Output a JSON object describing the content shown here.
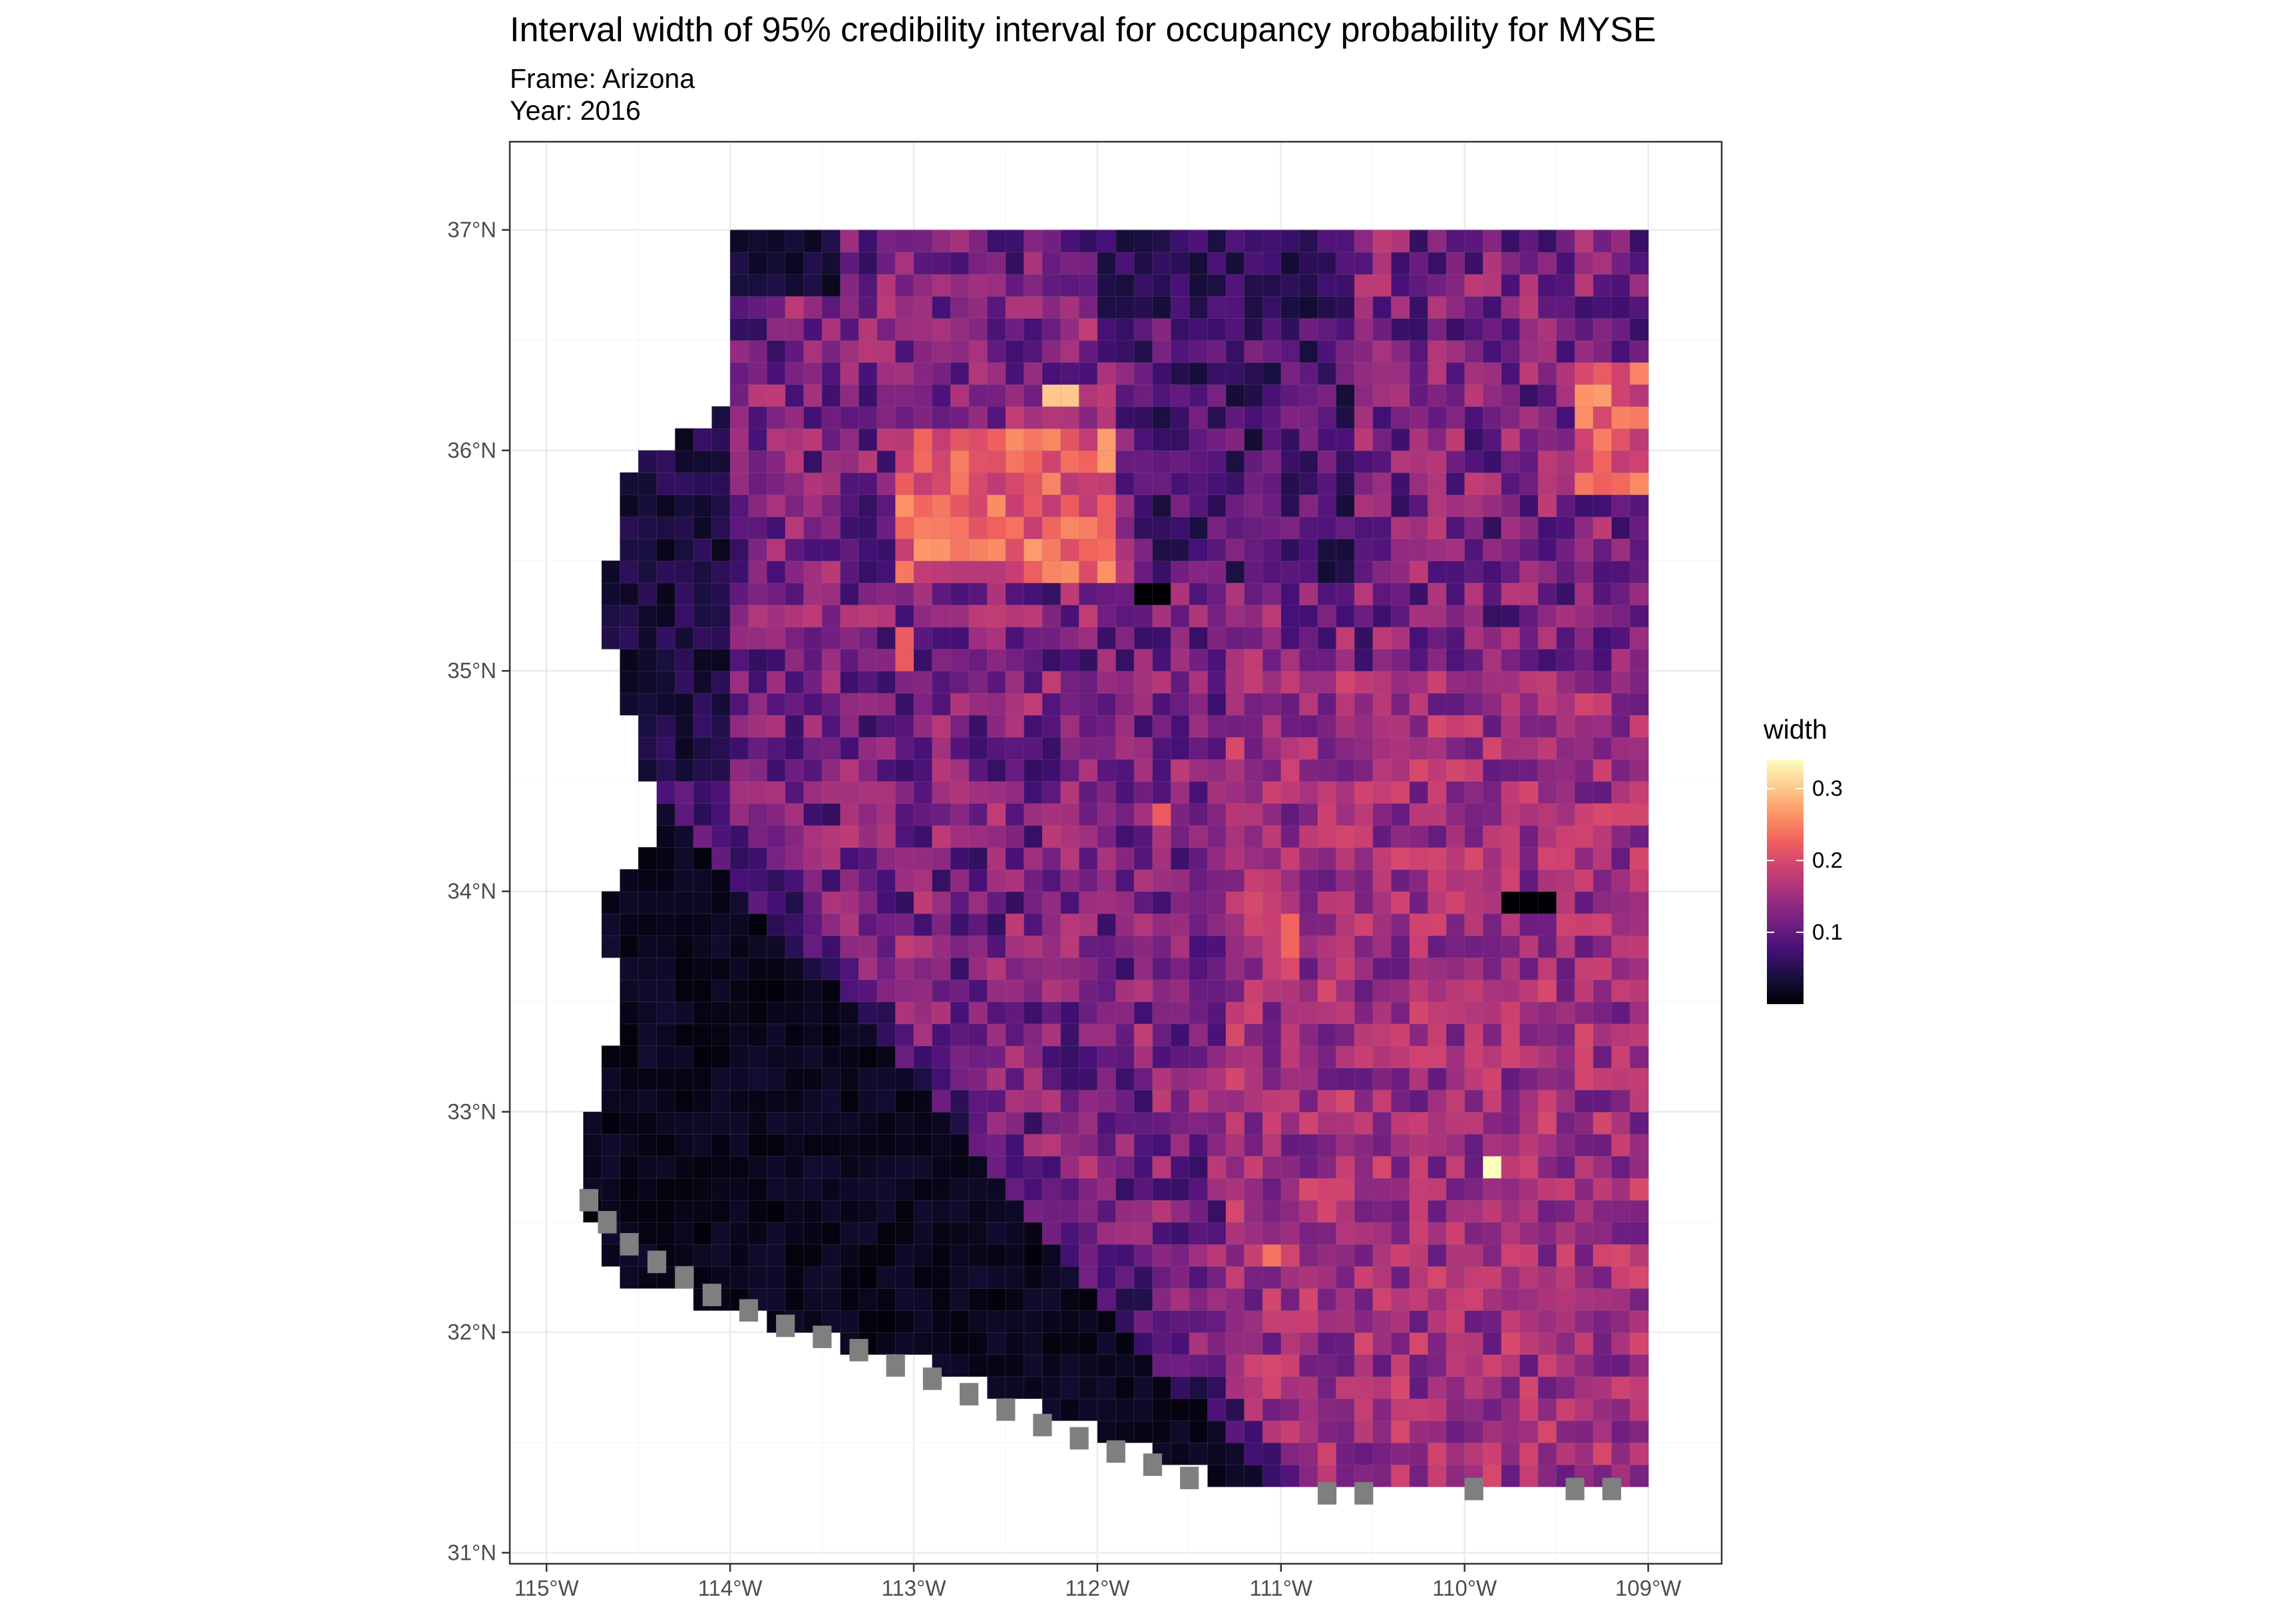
{
  "title": "Interval width of 95% credibility interval for occupancy probability for MYSE",
  "subtitle_frame": "Frame: Arizona",
  "subtitle_year": "Year: 2016",
  "chart_data": {
    "type": "heatmap",
    "geography": "Arizona",
    "x_ticks": [
      {
        "value": -115,
        "label": "115°W"
      },
      {
        "value": -114,
        "label": "114°W"
      },
      {
        "value": -113,
        "label": "113°W"
      },
      {
        "value": -112,
        "label": "112°W"
      },
      {
        "value": -111,
        "label": "111°W"
      },
      {
        "value": -110,
        "label": "110°W"
      },
      {
        "value": -109,
        "label": "109°W"
      }
    ],
    "y_ticks": [
      {
        "value": 31,
        "label": "31°N"
      },
      {
        "value": 32,
        "label": "32°N"
      },
      {
        "value": 33,
        "label": "33°N"
      },
      {
        "value": 34,
        "label": "34°N"
      },
      {
        "value": 35,
        "label": "35°N"
      },
      {
        "value": 36,
        "label": "36°N"
      },
      {
        "value": 37,
        "label": "37°N"
      }
    ],
    "xlim": [
      -115.2,
      -108.6
    ],
    "ylim": [
      30.95,
      37.4
    ],
    "grid": true,
    "na_color": "#7f7f7f",
    "legend": {
      "title": "width",
      "position": "right",
      "scale": "magma",
      "range": [
        0.0,
        0.34
      ],
      "ticks": [
        {
          "value": 0.1,
          "label": "0.1"
        },
        {
          "value": 0.2,
          "label": "0.2"
        },
        {
          "value": 0.3,
          "label": "0.3"
        }
      ]
    },
    "colors": {
      "magma": [
        "#000004",
        "#180f3e",
        "#451077",
        "#721f81",
        "#9f2f7f",
        "#cd4071",
        "#f1605d",
        "#fd9567",
        "#feca8d",
        "#fcfdbf"
      ]
    },
    "cell_size_deg": [
      0.1,
      0.1
    ],
    "regions": [
      {
        "name": "southwest-low",
        "lon": [
          -114.6,
          -111.3
        ],
        "lat": [
          31.3,
          34.5
        ],
        "mean_width": 0.01
      },
      {
        "name": "western-edge-low",
        "lon": [
          -114.8,
          -113.9
        ],
        "lat": [
          34.5,
          36.3
        ],
        "mean_width": 0.03
      },
      {
        "name": "grand-canyon-high",
        "lon": [
          -113.1,
          -111.9
        ],
        "lat": [
          35.4,
          36.1
        ],
        "mean_width": 0.22
      },
      {
        "name": "northeast-dark",
        "lon": [
          -111.8,
          -110.6
        ],
        "lat": [
          35.4,
          36.9
        ],
        "mean_width": 0.08
      },
      {
        "name": "eastern-high",
        "lon": [
          -109.4,
          -109.0
        ],
        "lat": [
          35.8,
          36.4
        ],
        "mean_width": 0.22
      },
      {
        "name": "central-mid",
        "lon": [
          -111.3,
          -109.0
        ],
        "lat": [
          31.3,
          35.0
        ],
        "mean_width": 0.15
      }
    ],
    "hotspots": [
      {
        "lon": -112.2,
        "lat": 36.25,
        "width": 0.3
      },
      {
        "lon": -109.85,
        "lat": 32.75,
        "width": 0.34
      },
      {
        "lon": -111.05,
        "lat": 32.35,
        "width": 0.24
      },
      {
        "lon": -110.95,
        "lat": 33.8,
        "width": 0.23
      },
      {
        "lon": -111.65,
        "lat": 34.35,
        "width": 0.22
      },
      {
        "lon": -113.05,
        "lat": 35.1,
        "width": 0.22
      }
    ],
    "cold_spots": [
      {
        "lon": -111.7,
        "lat": 35.35,
        "width": 0.0
      },
      {
        "lon": -109.6,
        "lat": 33.92,
        "width": 0.0
      },
      {
        "lon": -109.7,
        "lat": 33.92,
        "width": 0.0
      }
    ]
  }
}
